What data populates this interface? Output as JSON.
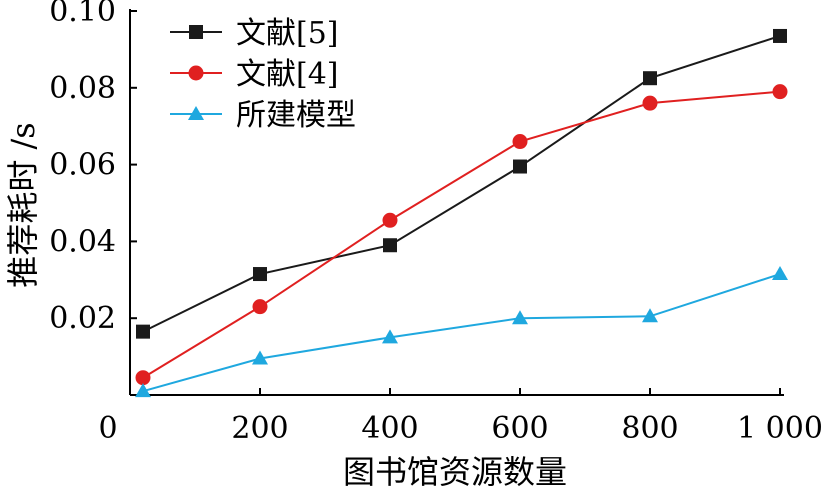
{
  "chart_data": {
    "type": "line",
    "xlabel": "图书馆资源数量",
    "ylabel": "推荐耗时 /s",
    "x": [
      20,
      200,
      400,
      600,
      800,
      1000
    ],
    "xticks": [
      "0",
      "200",
      "400",
      "600",
      "800",
      "1 000"
    ],
    "xtick_values": [
      0,
      200,
      400,
      600,
      800,
      1000
    ],
    "yticks": [
      "0.02",
      "0.04",
      "0.06",
      "0.08",
      "0.10"
    ],
    "ytick_values": [
      0.02,
      0.04,
      0.06,
      0.08,
      0.1
    ],
    "xlim": [
      0,
      1000
    ],
    "ylim": [
      0,
      0.1
    ],
    "grid": false,
    "legend": "top-left",
    "series": [
      {
        "name": "文献[5]",
        "color": "#1a1a1a",
        "marker": "square",
        "values": [
          0.0165,
          0.0315,
          0.039,
          0.0595,
          0.0825,
          0.0935
        ]
      },
      {
        "name": "文献[4]",
        "color": "#e02020",
        "marker": "circle",
        "values": [
          0.0045,
          0.023,
          0.0455,
          0.066,
          0.076,
          0.079
        ]
      },
      {
        "name": "所建模型",
        "color": "#1fa8df",
        "marker": "triangle",
        "values": [
          0.001,
          0.0095,
          0.015,
          0.02,
          0.0205,
          0.0315
        ]
      }
    ]
  }
}
